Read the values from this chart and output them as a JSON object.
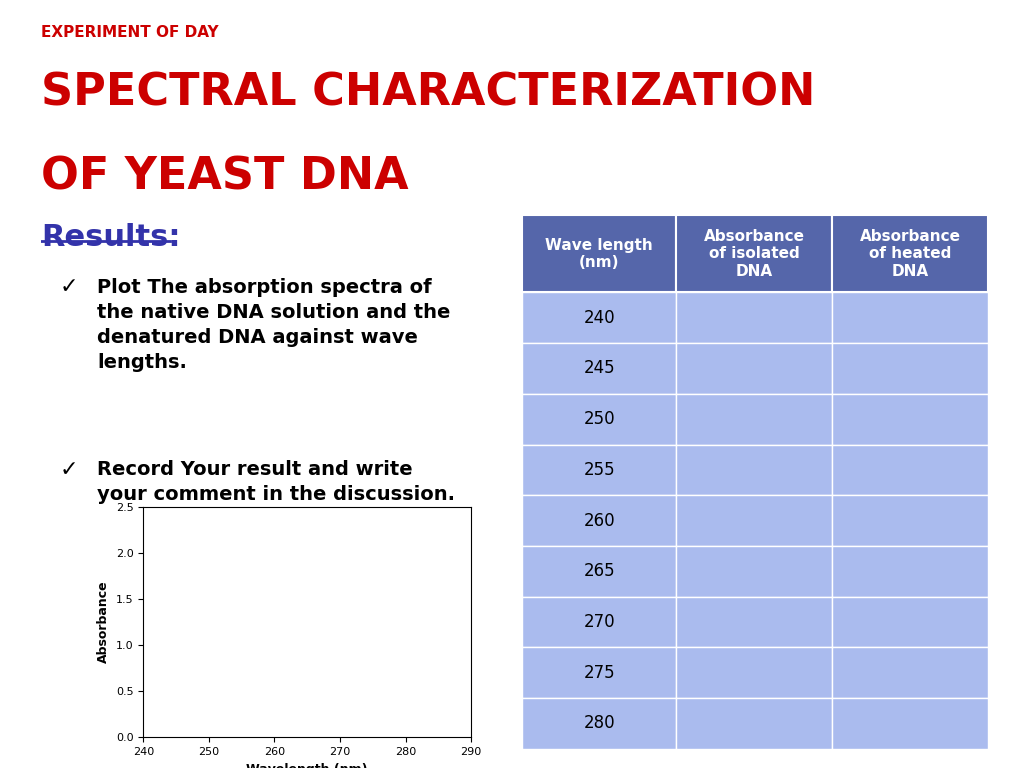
{
  "experiment_label": "EXPERIMENT OF DAY",
  "title_line1": "SPECTRAL CHARACTERIZATION",
  "title_line2": "OF YEAST DNA",
  "title_color": "#CC0000",
  "experiment_label_color": "#CC0000",
  "results_label": "Results:",
  "results_color": "#3333AA",
  "bullet1_text": "Plot The absorption spectra of\nthe native DNA solution and the\ndenatured DNA against wave\nlengths.",
  "bullet2_text": "Record Your result and write\nyour comment in the discussion.",
  "table_header_bg": "#5566AA",
  "table_header_text": "#FFFFFF",
  "table_row_bg": "#AABBEE",
  "table_border_color": "#FFFFFF",
  "table_col1": "Wave length\n(nm)",
  "table_col2": "Absorbance\nof isolated\nDNA",
  "table_col3": "Absorbance\nof heated\nDNA",
  "table_rows": [
    240,
    245,
    250,
    255,
    260,
    265,
    270,
    275,
    280
  ],
  "plot_xlabel": "Wavelength (nm)",
  "plot_ylabel": "Absorbance",
  "plot_xlim": [
    240,
    290
  ],
  "plot_ylim": [
    0.0,
    2.5
  ],
  "plot_xticks": [
    240,
    250,
    260,
    270,
    280,
    290
  ],
  "plot_yticks": [
    0.0,
    0.5,
    1.0,
    1.5,
    2.0,
    2.5
  ],
  "background_color": "#FFFFFF",
  "right_bar_color": "#CC0000",
  "right_bar_black_color": "#111111"
}
